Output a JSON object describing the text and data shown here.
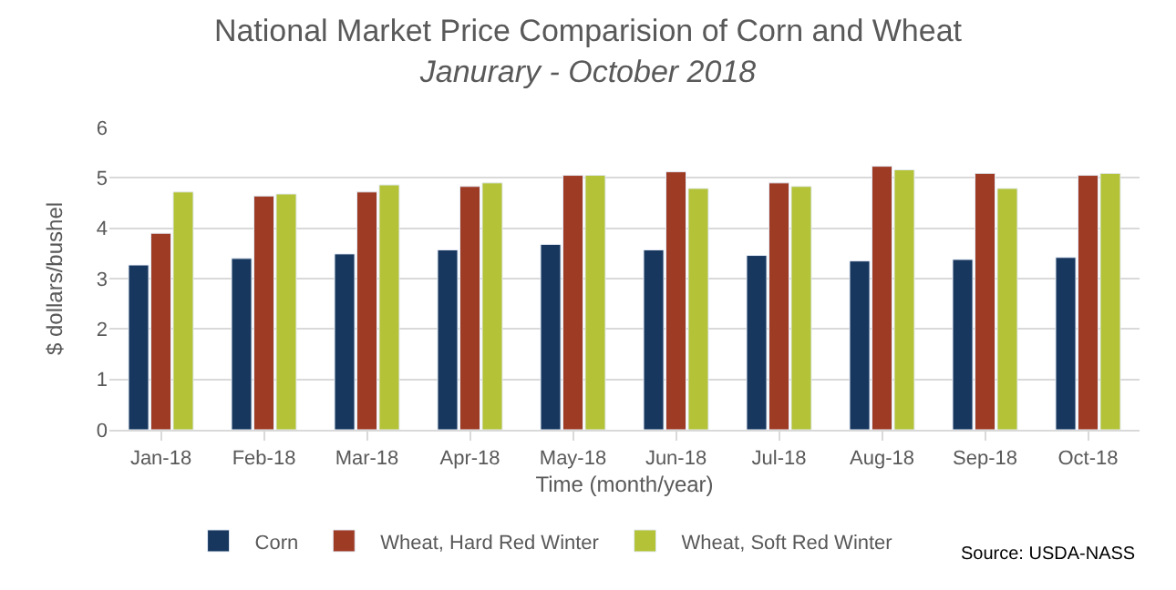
{
  "chart_data": {
    "type": "bar",
    "title": "National Market Price Comparision of Corn and Wheat",
    "subtitle": "Janurary - October 2018",
    "xlabel": "Time (month/year)",
    "ylabel": "$ dollars/bushel",
    "categories": [
      "Jan-18",
      "Feb-18",
      "Mar-18",
      "Apr-18",
      "May-18",
      "Jun-18",
      "Jul-18",
      "Aug-18",
      "Sep-18",
      "Oct-18"
    ],
    "series": [
      {
        "name": "Corn",
        "color": "#17375e",
        "values": [
          3.27,
          3.4,
          3.49,
          3.57,
          3.68,
          3.57,
          3.46,
          3.35,
          3.38,
          3.42
        ]
      },
      {
        "name": "Wheat, Hard Red Winter",
        "color": "#9e3b24",
        "values": [
          3.9,
          4.64,
          4.72,
          4.83,
          5.05,
          5.12,
          4.9,
          5.23,
          5.09,
          5.05
        ]
      },
      {
        "name": "Wheat, Soft Red Winter",
        "color": "#b3c236",
        "values": [
          4.72,
          4.68,
          4.86,
          4.9,
          5.05,
          4.79,
          4.83,
          5.16,
          4.79,
          5.09
        ]
      }
    ],
    "ylim": [
      0,
      6
    ],
    "yticks": [
      0,
      1,
      2,
      3,
      4,
      5,
      6
    ],
    "grid": "y",
    "legend": "bottom",
    "annotations": [
      "Source: USDA-NASS"
    ]
  }
}
